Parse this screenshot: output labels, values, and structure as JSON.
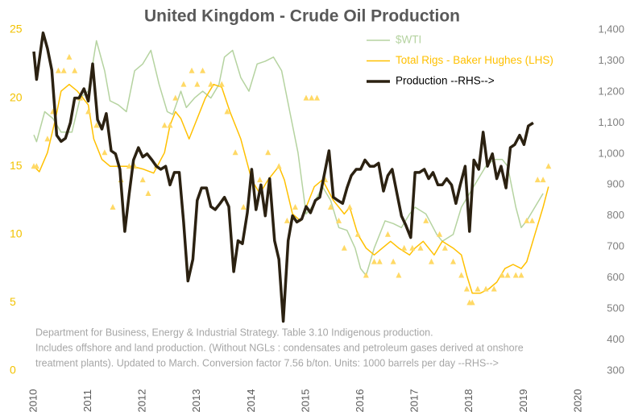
{
  "chart_data": {
    "type": "line",
    "title": "United Kingdom - Crude Oil Production",
    "note": [
      "Department for Business, Energy & Industrial Strategy. Table 3.10 Indigenous production.",
      "Includes offshore and land production.  (Without NGLs : condensates and petroleum gases derived at onshore",
      "treatment plants). Updated to March. Conversion factor 7.56 b/ton. Units: 1000 barrels per day --RHS-->"
    ],
    "xlim": [
      2010,
      2020
    ],
    "xticks": [
      2010,
      2011,
      2012,
      2013,
      2014,
      2015,
      2016,
      2017,
      2018,
      2019,
      2020
    ],
    "ylim": [
      0,
      25
    ],
    "yticks": [
      0,
      5,
      10,
      15,
      20,
      25
    ],
    "y2lim": [
      300,
      1400
    ],
    "y2ticks": [
      300,
      400,
      500,
      600,
      700,
      800,
      900,
      {
        "value": 1000,
        "label": "1,000"
      },
      {
        "value": 1100,
        "label": "1,100"
      },
      {
        "value": 1200,
        "label": "1,200"
      },
      {
        "value": 1300,
        "label": "1,300"
      },
      {
        "value": 1400,
        "label": "1,400"
      }
    ],
    "series": [
      {
        "name": "$WTI",
        "color": "#b5d3a0",
        "width": 1.5,
        "x": [
          2010.0,
          2010.05,
          2010.2,
          2010.35,
          2010.5,
          2010.7,
          2010.85,
          2011.0,
          2011.15,
          2011.3,
          2011.4,
          2011.55,
          2011.7,
          2011.85,
          2012.0,
          2012.15,
          2012.3,
          2012.45,
          2012.55,
          2012.7,
          2012.8,
          2012.95,
          2013.1,
          2013.25,
          2013.4,
          2013.5,
          2013.65,
          2013.8,
          2013.95,
          2014.1,
          2014.25,
          2014.4,
          2014.55,
          2014.7,
          2014.85,
          2015.0,
          2015.1,
          2015.3,
          2015.45,
          2015.6,
          2015.75,
          2015.9,
          2016.0,
          2016.1,
          2016.25,
          2016.45,
          2016.6,
          2016.75,
          2016.9,
          2017.0,
          2017.2,
          2017.4,
          2017.5,
          2017.7,
          2017.85,
          2018.0,
          2018.15,
          2018.3,
          2018.45,
          2018.6,
          2018.7,
          2018.85,
          2018.95,
          2019.05,
          2019.2,
          2019.35
        ],
        "values": [
          17.3,
          16.8,
          19,
          18.5,
          17.5,
          17.5,
          20,
          20.5,
          24.2,
          22,
          19.8,
          19.5,
          19,
          22,
          22.5,
          23.5,
          21,
          19,
          18.8,
          20.5,
          19.3,
          20,
          20.5,
          20,
          21,
          23,
          23.5,
          21.5,
          20.5,
          22.5,
          22.7,
          23,
          22,
          19,
          16,
          11.5,
          12,
          13.5,
          12.5,
          10.5,
          10.3,
          9,
          7.5,
          7,
          9,
          11,
          10.8,
          10.5,
          11.5,
          12,
          11.5,
          10,
          9.5,
          10,
          12,
          13,
          14,
          15,
          15.5,
          15.5,
          15,
          12,
          10.5,
          11,
          12,
          13
        ]
      },
      {
        "name": "Total Rigs - Baker Hughes (LHS)",
        "color": "#ffc000",
        "width": 1.5,
        "x": [
          2010.0,
          2010.1,
          2010.25,
          2010.4,
          2010.5,
          2010.65,
          2010.8,
          2011.0,
          2011.1,
          2011.25,
          2011.4,
          2011.6,
          2011.8,
          2012.0,
          2012.2,
          2012.4,
          2012.5,
          2012.6,
          2012.7,
          2012.85,
          2013.0,
          2013.15,
          2013.3,
          2013.45,
          2013.6,
          2013.8,
          2014.0,
          2014.15,
          2014.3,
          2014.5,
          2014.6,
          2014.75,
          2014.9,
          2015.0,
          2015.15,
          2015.3,
          2015.5,
          2015.7,
          2015.8,
          2015.95,
          2016.1,
          2016.25,
          2016.4,
          2016.55,
          2016.7,
          2016.9,
          2017.0,
          2017.15,
          2017.35,
          2017.5,
          2017.7,
          2017.85,
          2017.95,
          2018.05,
          2018.2,
          2018.35,
          2018.5,
          2018.65,
          2018.8,
          2018.95,
          2019.05,
          2019.2,
          2019.35,
          2019.45
        ],
        "values": [
          15,
          14.6,
          16,
          18.5,
          20.5,
          21,
          20.5,
          19.5,
          17,
          15.5,
          15,
          15,
          15,
          14.8,
          14.5,
          16,
          18,
          19,
          18.5,
          17,
          18.5,
          20,
          21,
          20.8,
          19,
          17,
          14,
          13,
          14,
          15,
          14,
          11.5,
          11,
          12,
          13.5,
          14,
          12.5,
          11.5,
          12,
          10,
          9,
          8.5,
          9,
          9.5,
          9,
          8.5,
          9,
          9.5,
          8.5,
          9.5,
          9,
          8.5,
          7,
          5.7,
          5.7,
          6,
          6.5,
          7.5,
          7.8,
          7.5,
          8,
          10,
          12,
          13.5
        ]
      },
      {
        "name": "Production --RHS-->",
        "color": "#2b2111",
        "width": 3.5,
        "axis": "y2",
        "x": [
          2010.0,
          2010.05,
          2010.17,
          2010.25,
          2010.33,
          2010.42,
          2010.5,
          2010.58,
          2010.67,
          2010.75,
          2010.83,
          2010.92,
          2011.0,
          2011.08,
          2011.17,
          2011.25,
          2011.33,
          2011.42,
          2011.5,
          2011.58,
          2011.67,
          2011.75,
          2011.83,
          2011.92,
          2012.0,
          2012.08,
          2012.17,
          2012.25,
          2012.33,
          2012.42,
          2012.5,
          2012.58,
          2012.67,
          2012.75,
          2012.83,
          2012.92,
          2013.0,
          2013.08,
          2013.17,
          2013.25,
          2013.33,
          2013.42,
          2013.5,
          2013.58,
          2013.67,
          2013.75,
          2013.83,
          2013.92,
          2014.0,
          2014.08,
          2014.17,
          2014.25,
          2014.33,
          2014.42,
          2014.5,
          2014.58,
          2014.67,
          2014.75,
          2014.83,
          2014.92,
          2015.0,
          2015.08,
          2015.17,
          2015.25,
          2015.33,
          2015.42,
          2015.5,
          2015.58,
          2015.67,
          2015.75,
          2015.83,
          2015.92,
          2016.0,
          2016.08,
          2016.17,
          2016.25,
          2016.33,
          2016.42,
          2016.5,
          2016.58,
          2016.67,
          2016.75,
          2016.83,
          2016.92,
          2017.0,
          2017.08,
          2017.17,
          2017.25,
          2017.33,
          2017.42,
          2017.5,
          2017.58,
          2017.67,
          2017.75,
          2017.83,
          2017.92,
          2018.0,
          2018.08,
          2018.17,
          2018.25,
          2018.33,
          2018.42,
          2018.5,
          2018.58,
          2018.67,
          2018.75,
          2018.83,
          2018.92,
          2019.0,
          2019.08,
          2019.17
        ],
        "values": [
          1330,
          1240,
          1390,
          1340,
          1270,
          1060,
          1040,
          1050,
          1100,
          1180,
          1180,
          1210,
          1170,
          1290,
          1110,
          1080,
          1130,
          1010,
          1000,
          950,
          750,
          870,
          980,
          1020,
          990,
          1000,
          980,
          960,
          950,
          960,
          900,
          940,
          940,
          780,
          590,
          660,
          850,
          890,
          890,
          830,
          820,
          840,
          860,
          830,
          620,
          720,
          710,
          810,
          950,
          820,
          900,
          800,
          920,
          720,
          660,
          460,
          720,
          800,
          780,
          790,
          830,
          810,
          850,
          860,
          930,
          1010,
          860,
          850,
          840,
          890,
          930,
          950,
          950,
          980,
          960,
          960,
          970,
          880,
          930,
          950,
          870,
          800,
          770,
          730,
          940,
          940,
          950,
          920,
          940,
          900,
          900,
          920,
          900,
          840,
          900,
          960,
          750,
          980,
          950,
          1070,
          960,
          1000,
          920,
          960,
          890,
          1020,
          1030,
          1060,
          1030,
          1090,
          1100
        ]
      },
      {
        "type": "scatter",
        "marker": "triangle",
        "color": "#ffd966",
        "x": [
          2010,
          2010.05,
          2010.25,
          2010.35,
          2010.45,
          2010.55,
          2010.65,
          2010.75,
          2010.85,
          2011.0,
          2011.15,
          2011.3,
          2011.45,
          2011.6,
          2011.75,
          2011.85,
          2012.0,
          2012.1,
          2012.25,
          2012.4,
          2012.5,
          2012.6,
          2012.75,
          2012.9,
          2013.0,
          2013.1,
          2013.25,
          2013.45,
          2013.55,
          2013.7,
          2013.85,
          2014.0,
          2014.15,
          2014.3,
          2014.5,
          2014.65,
          2014.8,
          2015.0,
          2015.1,
          2015.2,
          2015.35,
          2015.45,
          2015.6,
          2015.7,
          2015.8,
          2015.95,
          2016.1,
          2016.25,
          2016.35,
          2016.5,
          2016.6,
          2016.7,
          2016.8,
          2016.95,
          2017.1,
          2017.2,
          2017.3,
          2017.45,
          2017.55,
          2017.7,
          2017.85,
          2017.95,
          2018.0,
          2018.05,
          2018.15,
          2018.3,
          2018.45,
          2018.6,
          2018.7,
          2018.85,
          2018.95,
          2019.05,
          2019.15,
          2019.25,
          2019.35,
          2019.45
        ],
        "values": [
          15,
          15,
          17,
          19,
          22,
          22,
          23,
          22,
          20,
          19,
          18,
          16,
          12,
          14,
          15,
          15,
          14,
          13,
          15,
          18,
          18,
          20,
          21,
          22,
          21,
          22,
          21,
          21,
          19,
          16,
          12,
          14,
          14,
          16,
          15,
          11,
          12,
          20,
          20,
          20,
          14,
          12,
          11,
          9,
          12,
          10,
          7,
          8,
          8,
          10,
          8,
          7,
          9,
          9,
          9,
          11,
          8,
          10,
          9,
          8,
          7,
          6,
          5,
          5,
          6,
          6,
          6,
          7,
          7,
          7,
          7,
          11,
          11,
          14,
          14,
          15
        ]
      }
    ]
  }
}
